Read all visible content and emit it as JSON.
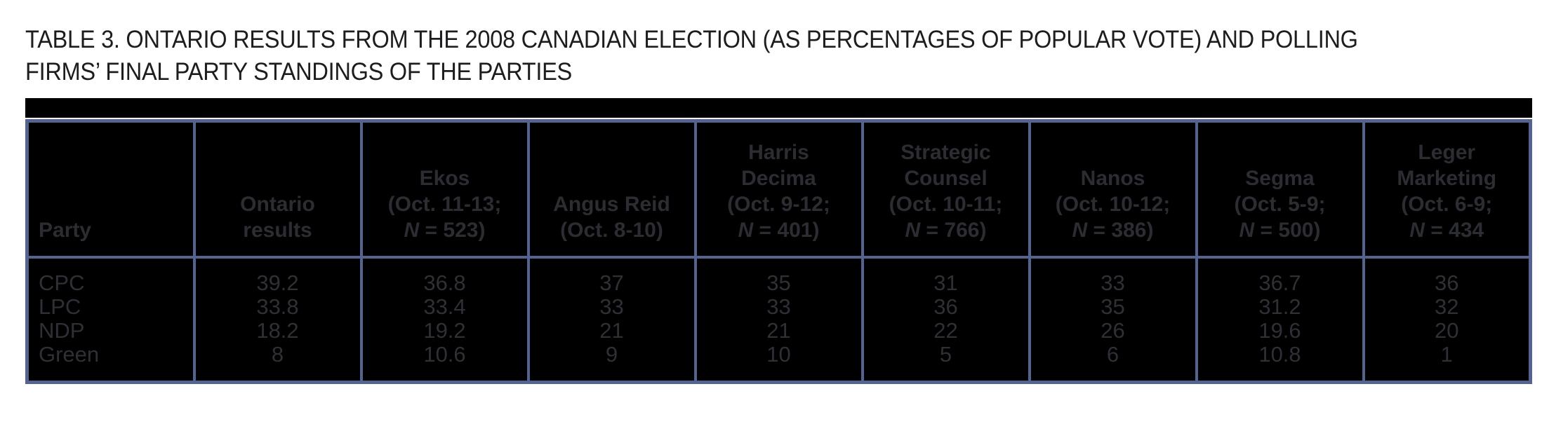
{
  "caption": {
    "line1": "TABLE 3. ONTARIO RESULTS FROM THE 2008 CANADIAN ELECTION (AS PERCENTAGES OF POPULAR VOTE) AND POLLING",
    "line2": "FIRMS’ FINAL PARTY STANDINGS OF THE PARTIES"
  },
  "colors": {
    "table_background": "#000000",
    "rule_blue": "#54638f",
    "header_text": "#2c2c33",
    "data_text": "#2f2f36",
    "caption_text": "#1d1d1f",
    "page_background": "#ffffff"
  },
  "table": {
    "columns": [
      {
        "top": "Party"
      },
      {
        "top": "Ontario\nresults"
      },
      {
        "top": "Ekos\n(Oct. 11-13;",
        "n_label": "N",
        "n_rest": " = 523)"
      },
      {
        "top": "Angus Reid\n(Oct. 8-10)"
      },
      {
        "top": "Harris\nDecima\n(Oct. 9-12;",
        "n_label": "N",
        "n_rest": " = 401)"
      },
      {
        "top": "Strategic\nCounsel\n(Oct. 10-11;",
        "n_label": "N",
        "n_rest": " = 766)"
      },
      {
        "top": "Nanos\n(Oct. 10-12;",
        "n_label": "N",
        "n_rest": " = 386)"
      },
      {
        "top": "Segma\n(Oct. 5-9;",
        "n_label": "N",
        "n_rest": " = 500)"
      },
      {
        "top": "Leger\nMarketing\n(Oct. 6-9;",
        "n_label": "N",
        "n_rest": " = 434"
      }
    ],
    "rows": [
      {
        "party": "CPC",
        "values": [
          "39.2",
          "36.8",
          "37",
          "35",
          "31",
          "33",
          "36.7",
          "36"
        ]
      },
      {
        "party": "LPC",
        "values": [
          "33.8",
          "33.4",
          "33",
          "33",
          "36",
          "35",
          "31.2",
          "32"
        ]
      },
      {
        "party": "NDP",
        "values": [
          "18.2",
          "19.2",
          "21",
          "21",
          "22",
          "26",
          "19.6",
          "20"
        ]
      },
      {
        "party": "Green",
        "values": [
          "8",
          "10.6",
          "9",
          "10",
          "5",
          "6",
          "10.8",
          "1"
        ]
      }
    ]
  }
}
